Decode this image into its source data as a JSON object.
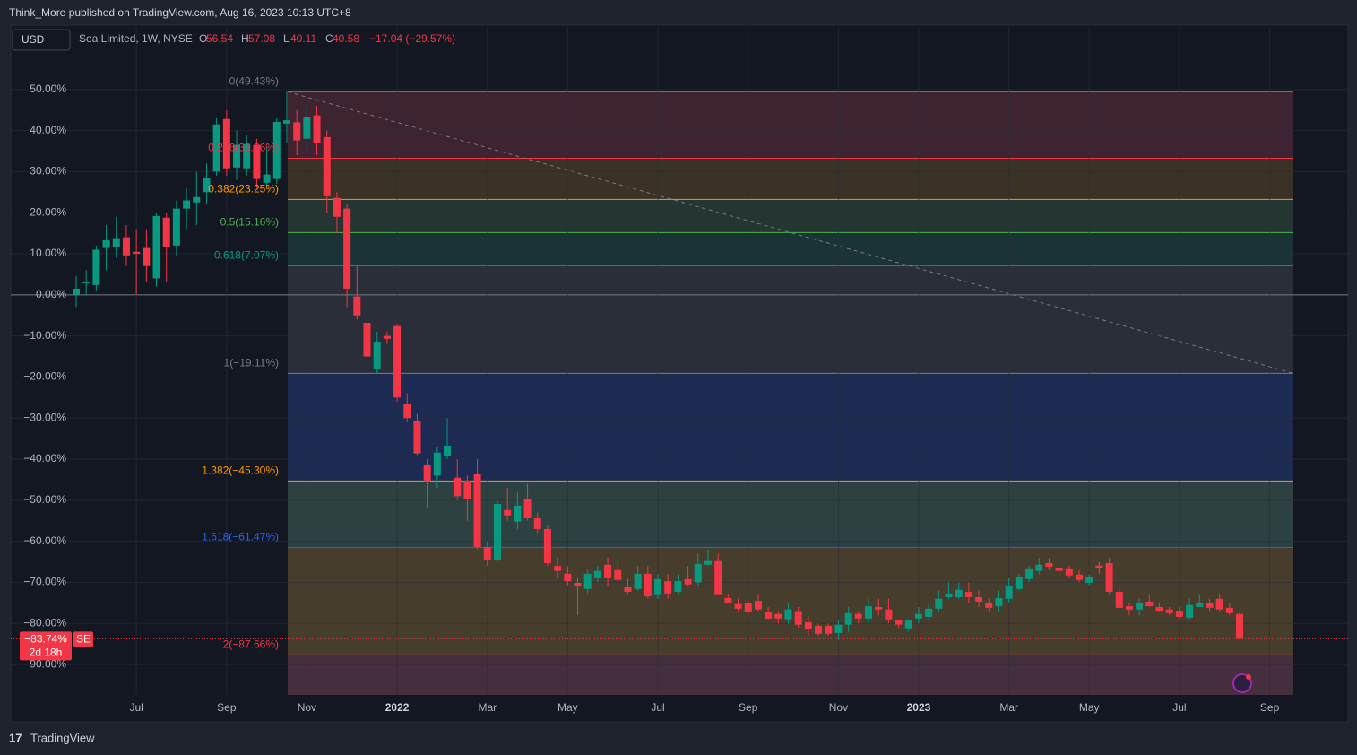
{
  "header": {
    "publisher": "Think_More published on TradingView.com, Aug 16, 2023 10:13 UTC+8",
    "currency": "USD",
    "symbol": "Sea Limited, 1W, NYSE",
    "ohlc": [
      {
        "label": "O",
        "value": "56.54"
      },
      {
        "label": "H",
        "value": "57.08"
      },
      {
        "label": "L",
        "value": "40.11"
      },
      {
        "label": "C",
        "value": "40.58"
      }
    ],
    "change": "−17.04 (−29.57%)",
    "logo": "TradingView"
  },
  "chart_data": {
    "type": "candlestick",
    "up_color": "#089981",
    "down_color": "#f23645",
    "grid": true,
    "ylim": [
      -97.4,
      56.5
    ],
    "yticks": [
      {
        "value": 50,
        "label": "50.00%"
      },
      {
        "value": 40,
        "label": "40.00%"
      },
      {
        "value": 30,
        "label": "30.00%"
      },
      {
        "value": 20,
        "label": "20.00%"
      },
      {
        "value": 10,
        "label": "10.00%"
      },
      {
        "value": 0,
        "label": "0.00%"
      },
      {
        "value": -10,
        "label": "−10.00%"
      },
      {
        "value": -20,
        "label": "−20.00%"
      },
      {
        "value": -30,
        "label": "−30.00%"
      },
      {
        "value": -40,
        "label": "−40.00%"
      },
      {
        "value": -50,
        "label": "−50.00%"
      },
      {
        "value": -60,
        "label": "−60.00%"
      },
      {
        "value": -70,
        "label": "−70.00%"
      },
      {
        "value": -80,
        "label": "−80.00%"
      },
      {
        "value": -90,
        "label": "−90.00%"
      }
    ],
    "categories": [
      null,
      null,
      null,
      null,
      null,
      null,
      "Jul",
      null,
      null,
      null,
      null,
      null,
      null,
      null,
      null,
      "Sep",
      null,
      null,
      null,
      null,
      null,
      null,
      null,
      "Nov",
      null,
      null,
      null,
      null,
      null,
      null,
      null,
      null,
      "2022",
      null,
      null,
      null,
      null,
      null,
      null,
      null,
      null,
      "Mar",
      null,
      null,
      null,
      null,
      null,
      null,
      null,
      "May",
      null,
      null,
      null,
      null,
      null,
      null,
      null,
      null,
      "Jul",
      null,
      null,
      null,
      null,
      null,
      null,
      null,
      null,
      "Sep",
      null,
      null,
      null,
      null,
      null,
      null,
      null,
      null,
      "Nov",
      null,
      null,
      null,
      null,
      null,
      null,
      null,
      "2023",
      null,
      null,
      null,
      null,
      null,
      null,
      null,
      null,
      "Mar",
      null,
      null,
      null,
      null,
      null,
      null,
      null,
      "May",
      null,
      null,
      null,
      null,
      null,
      null,
      null,
      null,
      "Jul",
      null,
      null,
      null,
      null,
      null,
      null,
      null,
      null,
      "Sep",
      null,
      null
    ],
    "open": [
      0,
      3,
      2.4,
      11.4,
      11.6,
      14,
      10.5,
      11.4,
      4,
      18.8,
      12,
      21,
      22.5,
      25,
      30,
      42.8,
      31,
      30.8,
      36.5,
      27.3,
      28.2,
      41.7,
      42,
      38,
      43.7,
      38.4,
      23.6,
      21,
      -0.4,
      -6.8,
      -18,
      -10,
      -7.6,
      -26.6,
      -30.6,
      -41.5,
      -44,
      -39.3,
      -44.5,
      -45.2,
      -43.7,
      -61.4,
      -64.6,
      -52.4,
      -55.2,
      -49.6,
      -54.4,
      -57,
      -66,
      -67.9,
      -70.1,
      -71.6,
      -69,
      -65.7,
      -67,
      -71.2,
      -71.6,
      -67.9,
      -73.1,
      -69.7,
      -72.3,
      -69.2,
      -70,
      -65.7,
      -64.8,
      -73.8,
      -75.3,
      -75.1,
      -74.5,
      -77.3,
      -77.7,
      -79,
      -77,
      -79.7,
      -80.6,
      -80.6,
      -82.3,
      -80.3,
      -77.7,
      -78.8,
      -76,
      -76.6,
      -79.3,
      -81.2,
      -78.8,
      -78.4,
      -76.4,
      -73.6,
      -73.6,
      -72.3,
      -73.6,
      -74.9,
      -75.8,
      -74,
      -71.6,
      -69.2,
      -67.2,
      -65.3,
      -66.4,
      -66.8,
      -68.1,
      -70.1,
      -65.9,
      -65.3,
      -72.3,
      -75.8,
      -76.6,
      -74.7,
      -76,
      -76.6,
      -76.9,
      -78.6,
      -76,
      -74.9,
      -74,
      -76.2,
      -77.7,
      null,
      null,
      null,
      null,
      null
    ],
    "high": [
      4.6,
      6,
      12,
      17,
      19,
      17,
      16,
      16,
      20,
      20,
      23,
      26,
      30,
      32,
      43,
      45,
      40,
      39,
      38,
      36,
      43,
      49.43,
      45,
      46,
      46,
      40,
      25,
      22,
      7,
      -5,
      -9,
      -9,
      -7,
      -24,
      -29,
      -40,
      -37,
      -30,
      -40,
      -44,
      -40,
      -60,
      -50,
      -47,
      -48,
      -46,
      -53,
      -56,
      -64,
      -66,
      -69,
      -67,
      -66,
      -64,
      -65,
      -69,
      -66,
      -66,
      -68,
      -68,
      -68,
      -66,
      -63,
      -62,
      -63,
      -73,
      -74,
      -74,
      -73,
      -76,
      -77,
      -75,
      -76,
      -78,
      -80,
      -80,
      -79,
      -76,
      -77,
      -74,
      -74,
      -74,
      -79,
      -79,
      -76,
      -75,
      -72,
      -70,
      -70,
      -70,
      -72,
      -74,
      -72,
      -69,
      -68,
      -66,
      -64,
      -64,
      -66,
      -66,
      -67,
      -68,
      -65,
      -64,
      -71,
      -75,
      -74,
      -73,
      -75,
      -76,
      -76,
      -74,
      -73,
      -74,
      -73,
      -75,
      -77,
      null,
      null,
      null,
      null,
      null
    ],
    "low": [
      -3,
      0,
      1,
      6,
      9,
      7,
      0,
      3,
      2,
      3,
      9.5,
      16,
      17,
      22,
      29,
      29,
      28,
      29,
      26,
      26,
      27,
      37,
      34,
      35,
      34,
      20,
      15,
      -3,
      -6,
      -19,
      -19,
      -12,
      -26,
      -31,
      -39,
      -52,
      -47,
      -40,
      -50,
      -55,
      -62,
      -66,
      -65,
      -55,
      -57,
      -55,
      -58,
      -66,
      -69,
      -71,
      -78,
      -73,
      -70,
      -71,
      -70,
      -73,
      -72,
      -74,
      -74,
      -74,
      -73,
      -71,
      -71,
      -66,
      -73,
      -75,
      -77,
      -78,
      -77,
      -79,
      -80,
      -80,
      -81,
      -83,
      -83,
      -83,
      -84,
      -82,
      -80,
      -80,
      -78,
      -80,
      -81,
      -82,
      -80,
      -79,
      -77,
      -74,
      -74,
      -75,
      -76,
      -77,
      -77,
      -75,
      -72,
      -70,
      -68,
      -67,
      -68,
      -69,
      -70,
      -71,
      -68,
      -73,
      -76,
      -78,
      -78,
      -76,
      -77,
      -78,
      -79,
      -79,
      -76,
      -77,
      -77,
      -78,
      -84,
      null,
      null,
      null,
      null,
      null
    ],
    "close": [
      1.5,
      3,
      11,
      13.3,
      13.8,
      9.6,
      10,
      7,
      19.2,
      11.6,
      21,
      23,
      23.8,
      28.4,
      41.5,
      30.8,
      36.5,
      36.7,
      28.2,
      29.3,
      42.1,
      42.5,
      37.6,
      43.2,
      36.9,
      24,
      19,
      1.5,
      -5,
      -15,
      -11.4,
      -10.7,
      -25,
      -30,
      -38.6,
      -45.4,
      -38.4,
      -36.7,
      -49,
      -49.6,
      -61.4,
      -64.6,
      -50.9,
      -53.7,
      -51.3,
      -54.4,
      -57,
      -65.3,
      -67.2,
      -69.7,
      -71,
      -67.9,
      -67.2,
      -69,
      -69.4,
      -72.3,
      -67.9,
      -73.4,
      -69.2,
      -72.7,
      -69.7,
      -70.5,
      -65.5,
      -64.8,
      -73.1,
      -74.9,
      -76.4,
      -77.3,
      -76.6,
      -78.8,
      -78.8,
      -76.6,
      -80.3,
      -81.4,
      -82.5,
      -82.5,
      -80.3,
      -77.5,
      -78.8,
      -75.8,
      -76.6,
      -79,
      -80.3,
      -79.3,
      -77.7,
      -76.4,
      -74,
      -72.7,
      -71.8,
      -73.6,
      -74.7,
      -76.2,
      -73.8,
      -71,
      -68.8,
      -66.8,
      -65.7,
      -66.2,
      -67.2,
      -68.3,
      -69.4,
      -68.8,
      -66.6,
      -72.3,
      -76.2,
      -76.6,
      -74.9,
      -75.8,
      -76.9,
      -77.5,
      -78.4,
      -75.5,
      -75.1,
      -76.2,
      -76.6,
      -77.5,
      -83.74,
      null,
      null,
      null,
      null,
      null
    ],
    "fib_levels": [
      {
        "value": 49.43,
        "label": "0(49.43%)",
        "color": "#787b86"
      },
      {
        "value": 33.26,
        "label": "0.236(33.26%)",
        "color": "#f23645",
        "fill": "#3d2430"
      },
      {
        "value": 23.25,
        "label": "0.382(23.25%)",
        "color": "#ff9800",
        "fill": "#3a3127"
      },
      {
        "value": 15.16,
        "label": "0.5(15.16%)",
        "color": "#4caf50",
        "fill": "#233632"
      },
      {
        "value": 7.07,
        "label": "0.618(7.07%)",
        "color": "#089981",
        "fill": "#1a3436"
      },
      {
        "value": -19.11,
        "label": "1(−19.11%)",
        "color": "#787b86",
        "fill": "#2a2e39"
      },
      {
        "value": -45.3,
        "label": "1.382(−45.30%)",
        "color": "#ff9800",
        "fill": "#1d2a52"
      },
      {
        "value": -61.47,
        "label": "1.618(−61.47%)",
        "color": "#2962ff",
        "fill": "#2e4141"
      },
      {
        "value": -87.66,
        "label": "2(−87.66%)",
        "color": "#f23645",
        "fill": "#463d2c"
      }
    ],
    "bottom_fill": "#452f3e",
    "last_label": "−83.74%",
    "symbol_tag": "SE",
    "countdown": "2d 18h"
  }
}
